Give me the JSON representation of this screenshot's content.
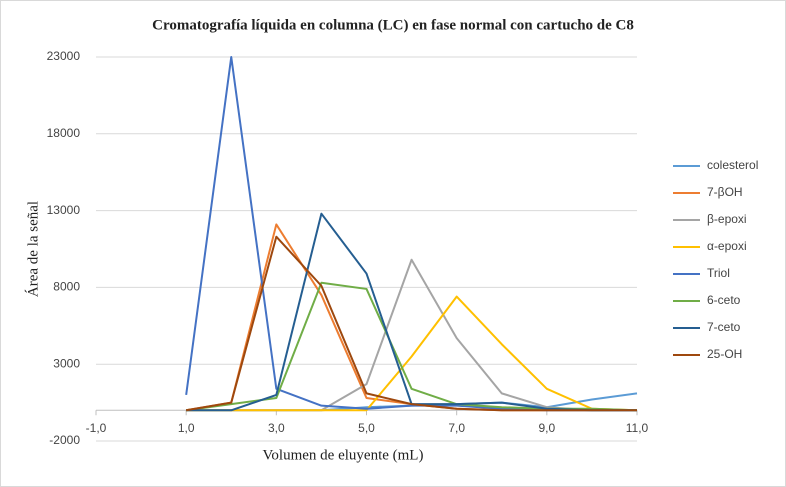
{
  "chart_data": {
    "type": "line",
    "title": "Cromatografía líquida en columna (LC) en fase normal con cartucho de C8",
    "x_label": "Volumen de eluyente (mL)",
    "y_label": "Área de la señal",
    "x": [
      1,
      2,
      3,
      4,
      5,
      6,
      7,
      8,
      9,
      10,
      11
    ],
    "series": [
      {
        "name": "colesterol",
        "color": "#5b9bd5",
        "values": [
          0,
          0,
          0,
          0,
          200,
          300,
          400,
          500,
          200,
          700,
          1100
        ]
      },
      {
        "name": "7-βOH",
        "color": "#ed7d31",
        "values": [
          0,
          500,
          12100,
          7500,
          800,
          400,
          100,
          0,
          0,
          0,
          0
        ]
      },
      {
        "name": "β-epoxi",
        "color": "#a5a5a5",
        "values": [
          0,
          0,
          0,
          0,
          1700,
          9800,
          4700,
          1100,
          200,
          0,
          0
        ]
      },
      {
        "name": "α-epoxi",
        "color": "#ffc000",
        "values": [
          0,
          0,
          0,
          0,
          0,
          3500,
          7400,
          4300,
          1400,
          100,
          0
        ]
      },
      {
        "name": "Triol",
        "color": "#4472c4",
        "values": [
          1000,
          23000,
          1400,
          300,
          100,
          300,
          300,
          100,
          0,
          0,
          0
        ]
      },
      {
        "name": "6-ceto",
        "color": "#70ad47",
        "values": [
          0,
          400,
          800,
          8300,
          7900,
          1400,
          400,
          200,
          100,
          100,
          0
        ]
      },
      {
        "name": "7-ceto",
        "color": "#255e91",
        "values": [
          0,
          0,
          1000,
          12800,
          8900,
          400,
          400,
          500,
          100,
          0,
          0
        ]
      },
      {
        "name": "25-OH",
        "color": "#9e480e",
        "values": [
          0,
          500,
          11300,
          8100,
          1100,
          400,
          100,
          0,
          0,
          0,
          0
        ]
      }
    ],
    "xlim": [
      -1,
      11
    ],
    "xticks": [
      {
        "value": -1,
        "label": "-1,0"
      },
      {
        "value": 1,
        "label": "1,0"
      },
      {
        "value": 3,
        "label": "3,0"
      },
      {
        "value": 5,
        "label": "5,0"
      },
      {
        "value": 7,
        "label": "7,0"
      },
      {
        "value": 9,
        "label": "9,0"
      },
      {
        "value": 11,
        "label": "11,0"
      }
    ],
    "ylim": [
      -2000,
      23000
    ],
    "yticks": [
      -2000,
      3000,
      8000,
      13000,
      18000,
      23000
    ],
    "grid": true,
    "legend": "right"
  }
}
